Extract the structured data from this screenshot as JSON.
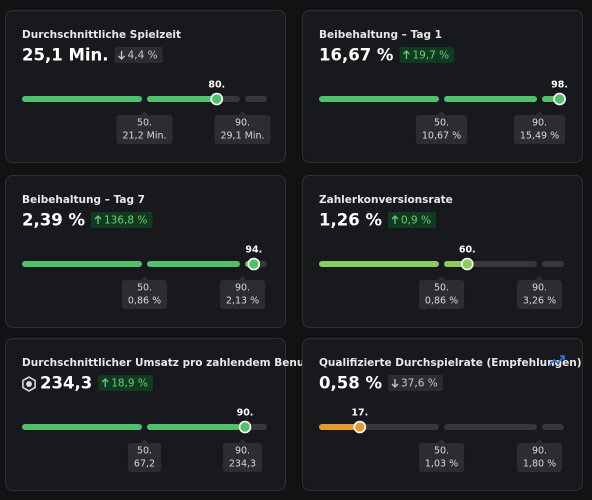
{
  "cards": [
    {
      "title": "Durchschnittliche Spielzeit",
      "value": "25,1 Min.",
      "change": {
        "trend": "down",
        "text": "4,4 %"
      },
      "color": "#4fc16b",
      "marker": {
        "value": 80,
        "label": "80."
      },
      "p50": {
        "value": 50,
        "label": "50.",
        "metric": "21,2 Min."
      },
      "p90": {
        "value": 90,
        "label": "90.",
        "metric": "29,1 Min."
      }
    },
    {
      "title": "Beibehaltung – Tag 1",
      "value": "16,67 %",
      "change": {
        "trend": "up",
        "text": "19,7 %"
      },
      "color": "#4fc16b",
      "marker": {
        "value": 98,
        "label": "98."
      },
      "p50": {
        "value": 50,
        "label": "50.",
        "metric": "10,67 %"
      },
      "p90": {
        "value": 90,
        "label": "90.",
        "metric": "15,49 %"
      }
    },
    {
      "title": "Beibehaltung – Tag 7",
      "value": "2,39 %",
      "change": {
        "trend": "up",
        "text": "136,8 %"
      },
      "color": "#4fc16b",
      "marker": {
        "value": 94,
        "label": "94."
      },
      "p50": {
        "value": 50,
        "label": "50.",
        "metric": "0,86 %"
      },
      "p90": {
        "value": 90,
        "label": "90.",
        "metric": "2,13 %"
      }
    },
    {
      "title": "Zahlerkonversionsrate",
      "value": "1,26 %",
      "change": {
        "trend": "up",
        "text": "0,9 %"
      },
      "color": "#8ccb5e",
      "marker": {
        "value": 60,
        "label": "60."
      },
      "p50": {
        "value": 50,
        "label": "50.",
        "metric": "0,86 %"
      },
      "p90": {
        "value": 90,
        "label": "90.",
        "metric": "3,26 %"
      }
    },
    {
      "title": "Durchschnittlicher Umsatz pro zahlendem Benutzer",
      "value": "234,3",
      "value_icon": "coin",
      "change": {
        "trend": "up",
        "text": "18,9 %"
      },
      "color": "#4fc16b",
      "marker": {
        "value": 90,
        "label": "90."
      },
      "p50": {
        "value": 50,
        "label": "50.",
        "metric": "67,2"
      },
      "p90": {
        "value": 90,
        "label": "90.",
        "metric": "234,3"
      }
    },
    {
      "title": "Qualifizierte Durchspielrate (Empfehlungen)",
      "value": "0,58 %",
      "corner_icon": "sparkline",
      "change": {
        "trend": "down",
        "text": "37,6 %"
      },
      "color": "#e39a35",
      "marker": {
        "value": 17,
        "label": "17."
      },
      "p50": {
        "value": 50,
        "label": "50.",
        "metric": "1,03 %"
      },
      "p90": {
        "value": 90,
        "label": "90.",
        "metric": "1,80 %"
      }
    }
  ]
}
